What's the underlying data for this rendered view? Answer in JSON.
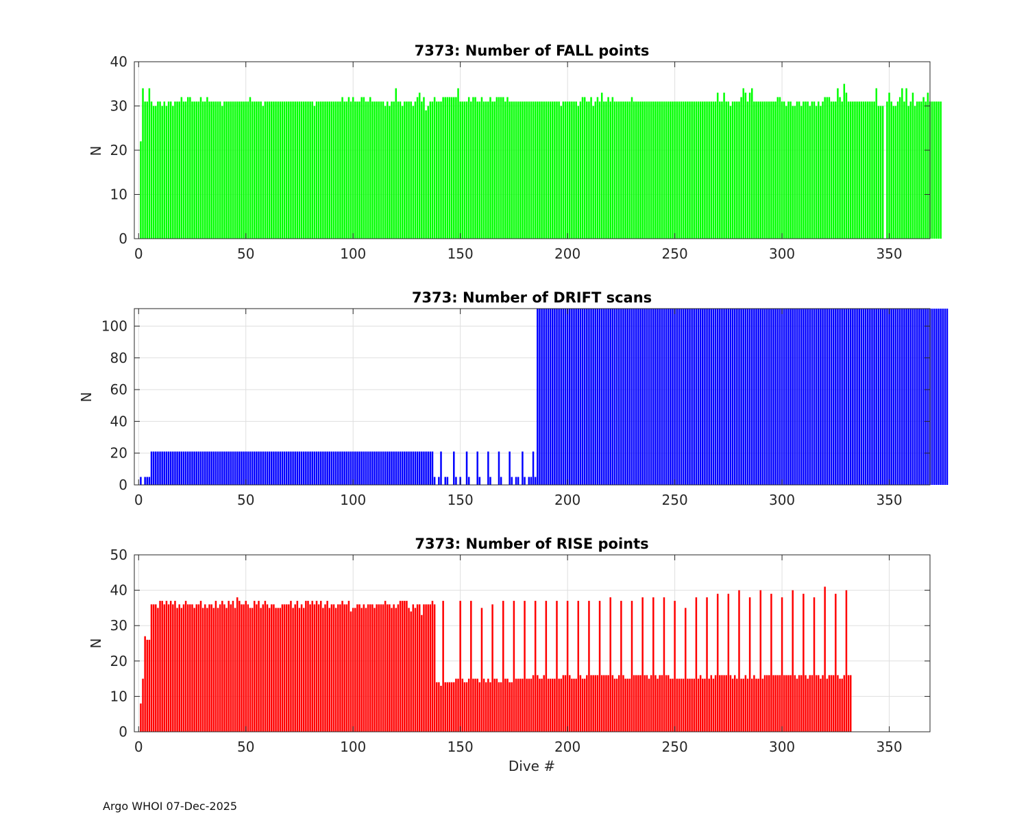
{
  "footer": "Argo WHOI 07-Dec-2025",
  "chart_data": [
    {
      "type": "bar",
      "title": "7373: Number of FALL points",
      "xlabel": "",
      "ylabel": "N",
      "xlim": [
        -2,
        369
      ],
      "ylim": [
        0,
        40
      ],
      "xticks": [
        0,
        50,
        100,
        150,
        200,
        250,
        300,
        350
      ],
      "yticks": [
        0,
        10,
        20,
        30,
        40
      ],
      "color": "#00ff00",
      "grid": true,
      "series": [
        {
          "name": "FALL points",
          "x_start": 1,
          "description_of_values": "per-dive counts",
          "values": [
            22,
            34,
            31,
            31,
            34,
            31,
            30,
            30,
            31,
            31,
            30,
            31,
            30,
            31,
            31,
            30,
            31,
            31,
            31,
            32,
            31,
            31,
            32,
            32,
            31,
            31,
            31,
            31,
            32,
            31,
            31,
            32,
            31,
            31,
            31,
            31,
            31,
            31,
            30,
            31,
            31,
            31,
            31,
            31,
            31,
            31,
            31,
            31,
            31,
            31,
            31,
            32,
            31,
            31,
            31,
            31,
            31,
            30,
            31,
            31,
            31,
            31,
            31,
            31,
            31,
            31,
            31,
            31,
            31,
            31,
            31,
            31,
            31,
            31,
            31,
            31,
            31,
            31,
            31,
            31,
            31,
            30,
            31,
            31,
            31,
            31,
            31,
            31,
            31,
            31,
            31,
            31,
            31,
            31,
            32,
            31,
            31,
            32,
            31,
            32,
            31,
            31,
            31,
            32,
            32,
            31,
            31,
            32,
            31,
            31,
            31,
            31,
            31,
            31,
            30,
            31,
            30,
            31,
            31,
            34,
            31,
            31,
            30,
            31,
            31,
            31,
            31,
            30,
            31,
            32,
            33,
            31,
            32,
            29,
            30,
            31,
            31,
            32,
            31,
            31,
            31,
            32,
            32,
            32,
            32,
            32,
            32,
            32,
            34,
            31,
            31,
            31,
            31,
            32,
            31,
            32,
            32,
            31,
            31,
            32,
            31,
            31,
            31,
            32,
            31,
            31,
            32,
            32,
            32,
            32,
            31,
            32,
            31,
            31,
            31,
            31,
            31,
            31,
            31,
            31,
            31,
            31,
            31,
            31,
            31,
            31,
            31,
            31,
            31,
            31,
            31,
            31,
            31,
            31,
            31,
            31,
            30,
            31,
            31,
            31,
            31,
            31,
            31,
            31,
            30,
            31,
            32,
            32,
            31,
            31,
            32,
            30,
            31,
            32,
            31,
            33,
            31,
            31,
            32,
            31,
            32,
            31,
            31,
            31,
            31,
            31,
            31,
            31,
            31,
            32,
            31,
            31,
            31,
            31,
            31,
            31,
            31,
            31,
            31,
            31,
            31,
            31,
            31,
            31,
            31,
            31,
            31,
            31,
            31,
            31,
            31,
            31,
            31,
            31,
            31,
            31,
            31,
            31,
            31,
            31,
            31,
            31,
            31,
            31,
            31,
            31,
            31,
            31,
            31,
            33,
            31,
            31,
            33,
            31,
            31,
            30,
            31,
            31,
            31,
            31,
            32,
            34,
            33,
            31,
            33,
            34,
            31,
            31,
            31,
            31,
            31,
            31,
            31,
            31,
            31,
            31,
            31,
            32,
            32,
            31,
            31,
            30,
            31,
            31,
            30,
            30,
            31,
            31,
            30,
            31,
            31,
            31,
            30,
            31,
            31,
            30,
            31,
            30,
            31,
            32,
            32,
            32,
            31,
            31,
            31,
            34,
            32,
            31,
            35,
            33,
            31,
            31,
            31,
            31,
            31,
            31,
            31,
            31,
            31,
            31,
            31,
            31,
            31,
            34,
            30,
            30,
            30,
            0,
            31,
            33,
            31,
            30,
            30,
            31,
            32,
            34,
            31,
            34,
            30,
            31,
            33,
            30,
            31,
            31,
            31,
            32,
            31,
            33,
            31,
            31,
            31,
            31,
            31,
            31
          ]
        }
      ]
    },
    {
      "type": "bar",
      "title": "7373: Number of DRIFT scans",
      "xlabel": "",
      "ylabel": "N",
      "xlim": [
        -2,
        369
      ],
      "ylim": [
        0,
        111
      ],
      "xticks": [
        0,
        50,
        100,
        150,
        200,
        250,
        300,
        350
      ],
      "yticks": [
        0,
        20,
        40,
        60,
        80,
        100
      ],
      "color": "#0000ff",
      "grid": true,
      "series": [
        {
          "name": "DRIFT scans",
          "x_start": 1,
          "values": [
            5,
            0,
            5,
            5,
            5,
            21,
            21,
            21,
            21,
            21,
            21,
            21,
            21,
            21,
            21,
            21,
            21,
            21,
            21,
            21,
            21,
            21,
            21,
            21,
            21,
            21,
            21,
            21,
            21,
            21,
            21,
            21,
            21,
            21,
            21,
            21,
            21,
            21,
            21,
            21,
            21,
            21,
            21,
            21,
            21,
            21,
            21,
            21,
            21,
            21,
            21,
            21,
            21,
            21,
            21,
            21,
            21,
            21,
            21,
            21,
            21,
            21,
            21,
            21,
            21,
            21,
            21,
            21,
            21,
            21,
            21,
            21,
            21,
            21,
            21,
            21,
            21,
            21,
            21,
            21,
            21,
            21,
            21,
            21,
            21,
            21,
            21,
            21,
            21,
            21,
            21,
            21,
            21,
            21,
            21,
            21,
            21,
            21,
            21,
            21,
            21,
            21,
            21,
            21,
            21,
            21,
            21,
            21,
            21,
            21,
            21,
            21,
            21,
            21,
            21,
            21,
            21,
            21,
            21,
            21,
            21,
            21,
            21,
            21,
            21,
            21,
            21,
            21,
            21,
            21,
            21,
            21,
            21,
            21,
            21,
            21,
            21,
            5,
            0,
            5,
            21,
            0,
            5,
            5,
            0,
            0,
            21,
            5,
            0,
            5,
            0,
            0,
            21,
            5,
            0,
            0,
            0,
            21,
            5,
            0,
            0,
            0,
            21,
            5,
            0,
            0,
            0,
            21,
            5,
            0,
            0,
            0,
            21,
            5,
            0,
            5,
            5,
            0,
            21,
            5,
            0,
            5,
            5,
            21,
            5,
            111,
            111,
            111,
            111,
            111,
            111,
            111,
            111,
            111,
            111,
            111,
            111,
            111,
            111,
            111,
            111,
            111,
            111,
            111,
            111,
            111,
            111,
            111,
            111,
            111,
            111,
            111,
            111,
            111,
            111,
            111,
            111,
            111,
            111,
            111,
            111,
            111,
            111,
            111,
            111,
            111,
            111,
            111,
            111,
            111,
            111,
            111,
            111,
            111,
            111,
            111,
            111,
            111,
            111,
            111,
            111,
            111,
            111,
            111,
            111,
            111,
            111,
            111,
            111,
            111,
            111,
            111,
            111,
            111,
            111,
            111,
            111,
            111,
            111,
            111,
            111,
            111,
            111,
            111,
            111,
            111,
            111,
            111,
            111,
            111,
            111,
            111,
            111,
            111,
            111,
            111,
            111,
            111,
            111,
            111,
            111,
            111,
            111,
            111,
            111,
            111,
            111,
            111,
            111,
            111,
            111,
            111,
            111,
            111,
            111,
            111,
            111,
            111,
            111,
            111,
            111,
            111,
            111,
            111,
            111,
            111,
            111,
            111,
            111,
            111,
            111,
            111,
            111,
            111,
            111,
            111,
            111,
            111,
            111,
            111,
            111,
            111,
            111,
            111,
            111,
            111,
            111,
            111,
            111,
            111,
            111,
            111,
            111,
            111,
            111,
            111,
            111,
            111,
            111,
            111,
            111,
            111,
            111,
            111,
            111,
            111,
            111,
            111,
            111,
            111,
            111,
            111,
            111,
            111,
            111,
            111,
            111,
            111,
            111,
            111,
            111,
            111,
            111,
            111,
            111,
            111,
            111,
            111,
            111,
            111,
            111,
            111,
            111,
            111,
            111,
            111,
            111
          ]
        }
      ]
    },
    {
      "type": "bar",
      "title": "7373: Number of RISE points",
      "xlabel": "Dive #",
      "ylabel": "N",
      "xlim": [
        -2,
        369
      ],
      "ylim": [
        0,
        50
      ],
      "xticks": [
        0,
        50,
        100,
        150,
        200,
        250,
        300,
        350
      ],
      "yticks": [
        0,
        10,
        20,
        30,
        40,
        50
      ],
      "color": "#ff0000",
      "grid": true,
      "series": [
        {
          "name": "RISE points",
          "x_start": 1,
          "values": [
            8,
            15,
            27,
            26,
            26,
            36,
            36,
            36,
            35,
            37,
            37,
            36,
            37,
            36,
            37,
            36,
            37,
            35,
            36,
            35,
            36,
            37,
            36,
            36,
            36,
            35,
            36,
            36,
            37,
            35,
            36,
            35,
            36,
            36,
            35,
            37,
            35,
            36,
            37,
            36,
            35,
            37,
            36,
            37,
            35,
            38,
            37,
            36,
            36,
            37,
            36,
            35,
            35,
            37,
            36,
            37,
            35,
            36,
            37,
            36,
            35,
            36,
            36,
            35,
            35,
            35,
            36,
            36,
            36,
            36,
            37,
            35,
            36,
            37,
            35,
            36,
            35,
            37,
            37,
            36,
            37,
            36,
            37,
            36,
            37,
            35,
            36,
            37,
            35,
            36,
            36,
            35,
            36,
            36,
            37,
            36,
            36,
            37,
            34,
            35,
            35,
            36,
            36,
            35,
            36,
            35,
            36,
            36,
            36,
            35,
            36,
            36,
            36,
            36,
            37,
            36,
            36,
            35,
            36,
            35,
            36,
            37,
            37,
            37,
            37,
            35,
            34,
            36,
            35,
            36,
            36,
            33,
            36,
            36,
            36,
            36,
            37,
            36,
            14,
            14,
            13,
            37,
            14,
            14,
            14,
            14,
            14,
            15,
            15,
            37,
            15,
            14,
            14,
            15,
            37,
            15,
            15,
            15,
            14,
            35,
            15,
            14,
            15,
            14,
            36,
            15,
            15,
            14,
            14,
            37,
            15,
            15,
            14,
            14,
            37,
            15,
            15,
            15,
            15,
            37,
            15,
            15,
            15,
            16,
            37,
            16,
            15,
            15,
            16,
            37,
            15,
            15,
            15,
            15,
            37,
            15,
            15,
            16,
            16,
            37,
            16,
            15,
            15,
            15,
            37,
            16,
            15,
            15,
            16,
            37,
            16,
            16,
            16,
            16,
            37,
            16,
            16,
            16,
            16,
            38,
            16,
            15,
            15,
            16,
            37,
            16,
            15,
            15,
            15,
            37,
            16,
            16,
            16,
            16,
            38,
            16,
            16,
            15,
            16,
            38,
            16,
            15,
            16,
            16,
            38,
            16,
            16,
            15,
            15,
            37,
            15,
            15,
            15,
            15,
            35,
            15,
            15,
            15,
            15,
            38,
            15,
            16,
            15,
            15,
            38,
            15,
            16,
            15,
            16,
            39,
            16,
            16,
            16,
            16,
            39,
            16,
            15,
            16,
            15,
            40,
            15,
            15,
            16,
            15,
            38,
            15,
            16,
            15,
            15,
            40,
            15,
            16,
            16,
            16,
            39,
            16,
            16,
            16,
            16,
            38,
            16,
            16,
            16,
            16,
            40,
            16,
            15,
            16,
            16,
            39,
            16,
            15,
            16,
            16,
            38,
            16,
            16,
            15,
            16,
            41,
            15,
            16,
            16,
            16,
            39,
            16,
            15,
            15,
            16,
            40,
            16,
            16
          ]
        }
      ]
    }
  ]
}
